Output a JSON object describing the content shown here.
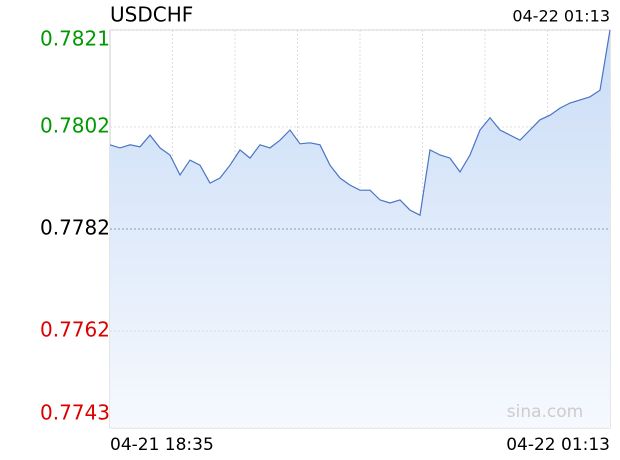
{
  "chart_data": {
    "type": "line",
    "title": "USDCHF",
    "updated": "04-22 01:13",
    "watermark": "sina.com",
    "x_labels": [
      "04-21 18:35",
      "04-22 01:13"
    ],
    "values": [
      0.77985,
      0.77979,
      0.77985,
      0.77981,
      0.78004,
      0.77979,
      0.77965,
      0.77926,
      0.77955,
      0.77945,
      0.7791,
      0.7792,
      0.77945,
      0.77975,
      0.77959,
      0.77985,
      0.77979,
      0.77994,
      0.78014,
      0.77987,
      0.77989,
      0.77985,
      0.77945,
      0.7792,
      0.77906,
      0.77896,
      0.77896,
      0.77877,
      0.77871,
      0.77877,
      0.77857,
      0.77847,
      0.77975,
      0.77965,
      0.77959,
      0.77932,
      0.77965,
      0.78014,
      0.78038,
      0.78014,
      0.78004,
      0.77994,
      0.78014,
      0.78034,
      0.78043,
      0.78057,
      0.78067,
      0.78073,
      0.78079,
      0.78092,
      0.7821
    ],
    "color": "#4a74c4",
    "reference": 0.7782,
    "ylim": [
      0.7743,
      0.7821
    ],
    "yticks": [
      0.7821,
      0.7802,
      0.7782,
      0.7762,
      0.7743
    ],
    "up_color": "#009900",
    "down_color": "#dd0000",
    "flat_color": "#000000",
    "grid": true
  }
}
